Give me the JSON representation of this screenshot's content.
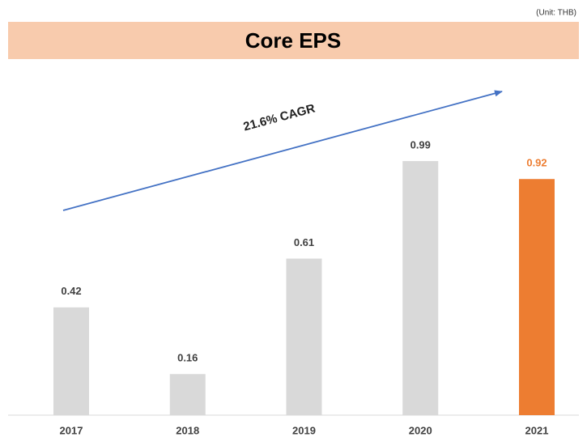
{
  "chart_data": {
    "type": "bar",
    "title": "Core EPS",
    "unit_note": "(Unit: THB)",
    "annotation": "21.6% CAGR",
    "categories": [
      "2017",
      "2018",
      "2019",
      "2020",
      "2021"
    ],
    "values": [
      0.42,
      0.16,
      0.61,
      0.99,
      0.92
    ],
    "colors": [
      "#d9d9d9",
      "#d9d9d9",
      "#d9d9d9",
      "#d9d9d9",
      "#ed7d31"
    ],
    "label_colors": [
      "#404040",
      "#404040",
      "#404040",
      "#404040",
      "#ed7d31"
    ],
    "ylim": [
      0,
      1.05
    ]
  }
}
